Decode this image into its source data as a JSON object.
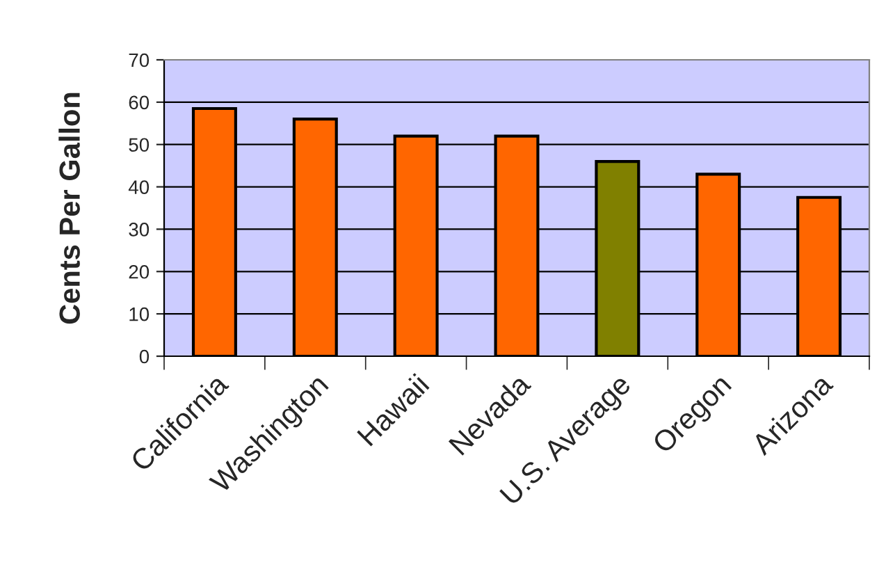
{
  "chart_data": {
    "type": "bar",
    "ylabel": "Cents Per Gallon",
    "categories": [
      "California",
      "Washington",
      "Hawaii",
      "Nevada",
      "U.S. Average",
      "Oregon",
      "Arizona"
    ],
    "values": [
      58.5,
      56,
      52,
      52,
      46,
      43,
      37.5
    ],
    "colors": [
      "#ff6600",
      "#ff6600",
      "#ff6600",
      "#ff6600",
      "#808000",
      "#ff6600",
      "#ff6600"
    ],
    "ylim": [
      0,
      70
    ],
    "yticks": [
      0,
      10,
      20,
      30,
      40,
      50,
      60,
      70
    ],
    "grid": "y",
    "legend": false
  }
}
